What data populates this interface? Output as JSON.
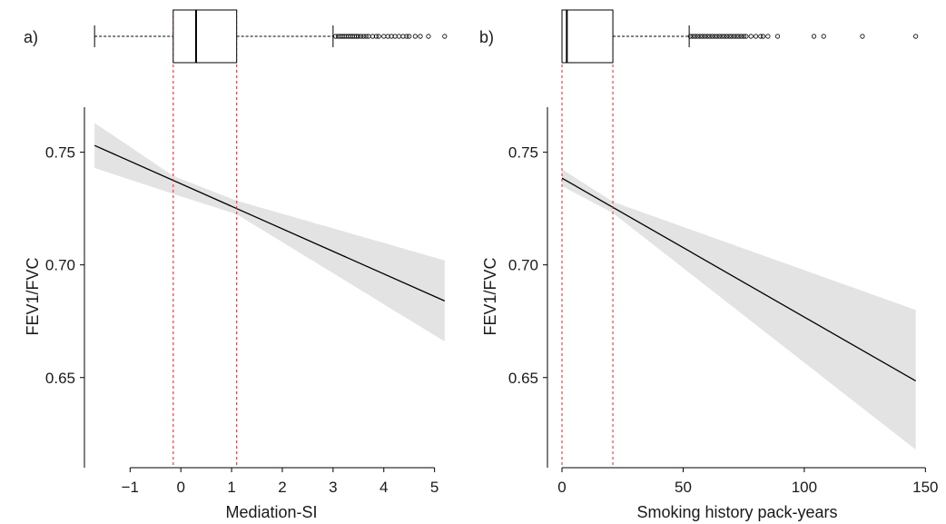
{
  "chart_data": [
    {
      "panel": "a)",
      "type": "line",
      "xlabel": "Mediation-SI",
      "ylabel": "FEV1/FVC",
      "xlim": [
        -1.9,
        5.4
      ],
      "ylim": [
        0.61,
        0.77
      ],
      "xticks": [
        -1,
        0,
        1,
        2,
        3,
        4,
        5
      ],
      "xtick_labels": [
        "−1",
        "0",
        "1",
        "2",
        "3",
        "4",
        "5"
      ],
      "yticks": [
        0.65,
        0.7,
        0.75
      ],
      "ytick_labels": [
        "0.65",
        "0.70",
        "0.75"
      ],
      "fit": {
        "x": [
          -1.7,
          5.2
        ],
        "y": [
          0.753,
          0.684
        ]
      },
      "ci_band": {
        "x": [
          -1.7,
          -0.15,
          1.1,
          5.2
        ],
        "lower": [
          0.743,
          0.7315,
          0.7225,
          0.666
        ],
        "upper": [
          0.763,
          0.7395,
          0.7285,
          0.702
        ]
      },
      "boxplot": {
        "whisker_low": -1.7,
        "q1": -0.15,
        "median": 0.3,
        "q3": 1.1,
        "whisker_high": 3.0,
        "outliers": [
          3.05,
          3.1,
          3.14,
          3.18,
          3.22,
          3.26,
          3.3,
          3.34,
          3.38,
          3.42,
          3.46,
          3.5,
          3.55,
          3.6,
          3.65,
          3.7,
          3.78,
          3.85,
          3.9,
          4.0,
          4.08,
          4.15,
          4.22,
          4.3,
          4.38,
          4.45,
          4.5,
          4.62,
          4.72,
          4.88,
          5.2
        ]
      },
      "iqr_guides": [
        -0.15,
        1.1
      ],
      "grid": false
    },
    {
      "panel": "b)",
      "type": "line",
      "xlabel": "Smoking history pack-years",
      "ylabel": "FEV1/FVC",
      "xlim": [
        -6,
        151
      ],
      "ylim": [
        0.61,
        0.77
      ],
      "xticks": [
        0,
        50,
        100,
        150
      ],
      "xtick_labels": [
        "0",
        "50",
        "100",
        "150"
      ],
      "yticks": [
        0.65,
        0.7,
        0.75
      ],
      "ytick_labels": [
        "0.65",
        "0.70",
        "0.75"
      ],
      "fit": {
        "x": [
          0,
          146
        ],
        "y": [
          0.7385,
          0.6485
        ]
      },
      "ci_band": {
        "x": [
          0,
          21,
          146
        ],
        "lower": [
          0.735,
          0.723,
          0.618
        ],
        "upper": [
          0.7425,
          0.728,
          0.68
        ]
      },
      "boxplot": {
        "whisker_low": 0,
        "q1": 0,
        "median": 2,
        "q3": 21,
        "whisker_high": 52.5,
        "outliers": [
          53,
          54,
          55,
          56,
          57,
          58,
          59,
          60,
          61,
          62,
          63,
          64,
          65,
          66,
          67,
          68,
          69,
          70,
          71,
          72,
          73,
          74,
          75,
          76,
          78,
          80,
          82,
          83,
          85,
          89,
          104,
          108,
          124,
          146
        ]
      },
      "iqr_guides": [
        0,
        21
      ],
      "grid": false
    }
  ]
}
